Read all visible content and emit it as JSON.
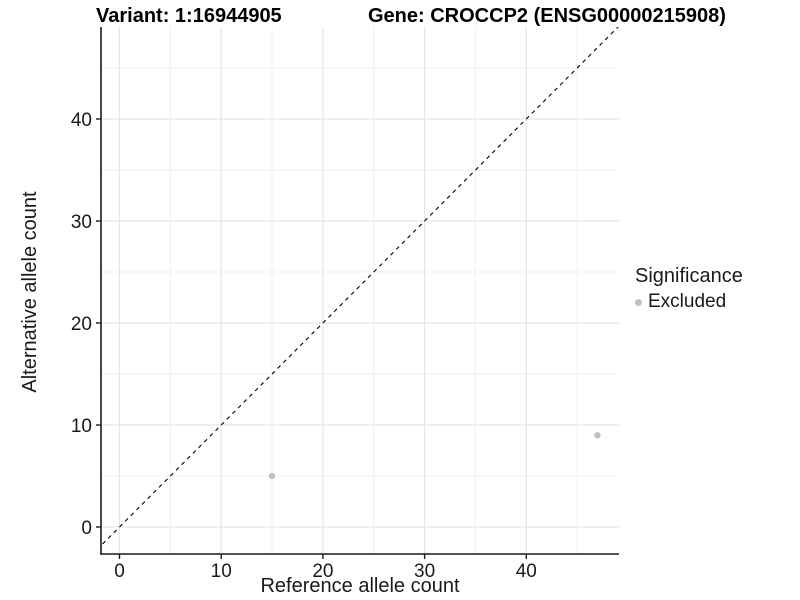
{
  "titles": {
    "variant": "Variant: 1:16944905",
    "gene": "Gene: CROCCP2 (ENSG00000215908)"
  },
  "chart_data": {
    "type": "scatter",
    "xlabel": "Reference allele count",
    "ylabel": "Alternative allele count",
    "xticks": [
      0,
      10,
      20,
      30,
      40
    ],
    "yticks": [
      0,
      10,
      20,
      30,
      40
    ],
    "minor_xticks": [
      5,
      15,
      25,
      35,
      45
    ],
    "minor_yticks": [
      5,
      15,
      25,
      35,
      45
    ],
    "xlim": [
      -1.8,
      49.5
    ],
    "ylim": [
      -2.8,
      49.0
    ],
    "grid": true,
    "series": [
      {
        "name": "Excluded",
        "color": "#c0c0c0",
        "points": [
          {
            "x": 15,
            "y": 5
          },
          {
            "x": 47,
            "y": 9
          }
        ]
      }
    ],
    "reference_line": {
      "type": "identity",
      "style": "dashed",
      "color": "#000000"
    },
    "legend": {
      "title": "Significance",
      "position": "right",
      "items": [
        {
          "label": "Excluded",
          "color": "#c0c0c0"
        }
      ]
    }
  },
  "colors": {
    "background": "#ffffff",
    "axis": "#1a1a1a",
    "tick_label": "#1a1a1a",
    "grid_major": "#e6e6e6",
    "grid_minor": "#f0f0f0"
  }
}
